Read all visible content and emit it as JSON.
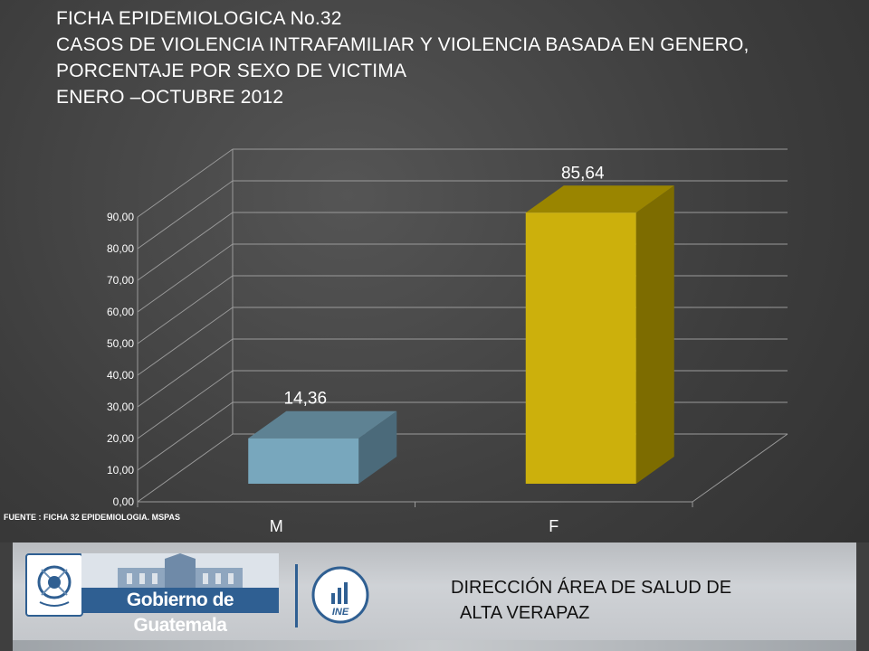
{
  "title_lines": [
    "FICHA EPIDEMIOLOGICA  No.32",
    "CASOS DE VIOLENCIA INTRAFAMILIAR Y VIOLENCIA BASADA EN GENERO,",
    "PORCENTAJE POR SEXO DE VICTIMA",
    "ENERO –OCTUBRE 2012"
  ],
  "source_note": "FUENTE : FICHA 32 EPIDEMIOLOGIA. MSPAS",
  "footer": {
    "gov_name": "Gobierno de Guatemala",
    "ine_label": "INE",
    "direction_line1": "DIRECCIÓN ÁREA DE SALUD DE",
    "direction_line2": "ALTA VERAPAZ"
  },
  "chart_data": {
    "type": "bar",
    "style": "3d-column",
    "categories": [
      "M",
      "F"
    ],
    "values": [
      14.36,
      85.64
    ],
    "data_labels": [
      "14,36",
      "85,64"
    ],
    "ylim": [
      0,
      90
    ],
    "yticks": [
      "0,00",
      "10,00",
      "20,00",
      "30,00",
      "40,00",
      "50,00",
      "60,00",
      "70,00",
      "80,00",
      "90,00"
    ],
    "grid": true,
    "title": "",
    "xlabel": "",
    "ylabel": "",
    "colors": {
      "M": {
        "front": "#78a7bd",
        "top": "#5e8293",
        "side": "#4b6a7a"
      },
      "F": {
        "front": "#ccb00c",
        "top": "#9a8500",
        "side": "#7d6c00"
      }
    }
  }
}
